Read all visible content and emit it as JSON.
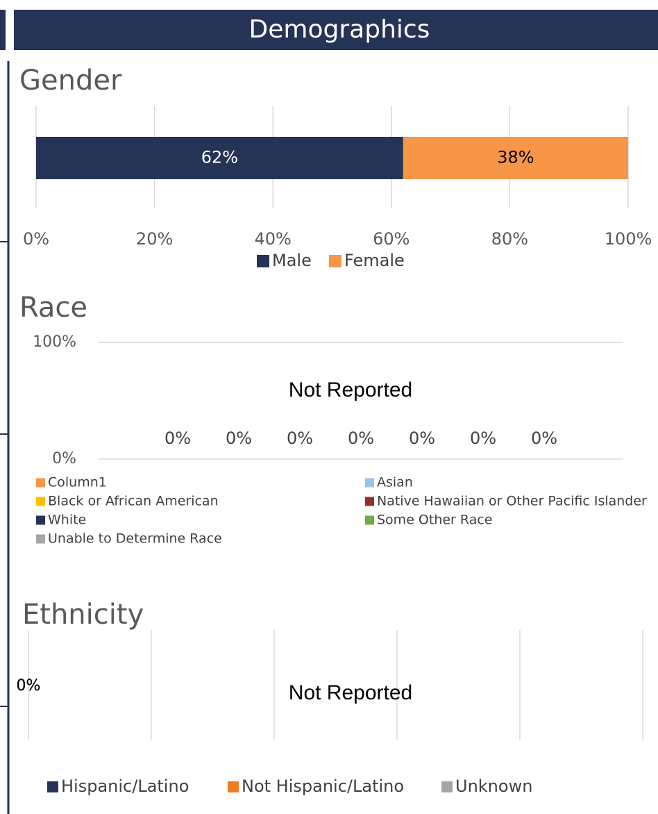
{
  "title": "Demographics",
  "chart_data": [
    {
      "type": "bar",
      "orientation": "horizontal",
      "stacked": true,
      "title": "Gender",
      "categories": [
        null
      ],
      "series": [
        {
          "name": "Male",
          "color": "#253356",
          "values": [
            62
          ],
          "value_labels": [
            "62%"
          ]
        },
        {
          "name": "Female",
          "color": "#f79646",
          "values": [
            38
          ],
          "value_labels": [
            "38%"
          ]
        }
      ],
      "xlim": [
        0,
        100
      ],
      "xticks": [
        {
          "value": 0,
          "label": "0%"
        },
        {
          "value": 20,
          "label": "20%"
        },
        {
          "value": 40,
          "label": "40%"
        },
        {
          "value": 60,
          "label": "60%"
        },
        {
          "value": 80,
          "label": "80%"
        },
        {
          "value": 100,
          "label": "100%"
        }
      ],
      "grid": true,
      "legend": "bottom"
    },
    {
      "type": "bar",
      "title": "Race",
      "annotation": "Not Reported",
      "categories": [
        null
      ],
      "series": [
        {
          "name": "Column1",
          "color": "#f79646",
          "values": [
            0
          ],
          "value_labels": [
            "0%"
          ]
        },
        {
          "name": "Asian",
          "color": "#9dc3e6",
          "values": [
            0
          ],
          "value_labels": [
            "0%"
          ]
        },
        {
          "name": "Black or African American",
          "color": "#ffc000",
          "values": [
            0
          ],
          "value_labels": [
            "0%"
          ]
        },
        {
          "name": "Native Hawaiian or Other Pacific Islander",
          "color": "#943126",
          "values": [
            0
          ],
          "value_labels": [
            "0%"
          ]
        },
        {
          "name": "White",
          "color": "#253356",
          "values": [
            0
          ],
          "value_labels": [
            "0%"
          ]
        },
        {
          "name": "Some Other Race",
          "color": "#70ad47",
          "values": [
            0
          ],
          "value_labels": [
            "0%"
          ]
        },
        {
          "name": "Unable to Determine Race",
          "color": "#a5a5a5",
          "values": [
            0
          ],
          "value_labels": [
            "0%"
          ]
        }
      ],
      "ylim": [
        0,
        100
      ],
      "yticks": [
        {
          "value": 0,
          "label": "0%"
        },
        {
          "value": 100,
          "label": "100%"
        }
      ],
      "grid": true,
      "legend": "bottom"
    },
    {
      "type": "bar",
      "orientation": "horizontal",
      "stacked": true,
      "title": "Ethnicity",
      "annotation": "Not Reported",
      "categories": [
        null
      ],
      "series": [
        {
          "name": "Hispanic/Latino",
          "color": "#253356",
          "values": [
            0
          ],
          "value_labels": [
            "0%"
          ]
        },
        {
          "name": "Not Hispanic/Latino",
          "color": "#f47b20",
          "values": [
            0
          ],
          "value_labels": [
            "0%"
          ]
        },
        {
          "name": "Unknown",
          "color": "#a5a5a5",
          "values": [
            0
          ],
          "value_labels": [
            "0%"
          ]
        }
      ],
      "xlim": [
        0,
        100
      ],
      "xticks": [
        0,
        20,
        40,
        60,
        80,
        100
      ],
      "grid": true,
      "legend": "bottom"
    }
  ]
}
